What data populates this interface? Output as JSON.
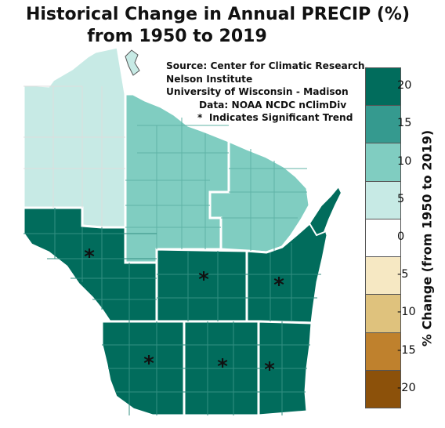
{
  "title_line1": "Historical Change in Annual PRECIP (%)",
  "title_line2": "from 1950 to 2019",
  "source": {
    "line1": "Source:  Center for Climatic Research,",
    "line2": "Nelson Institute",
    "line3": "University of Wisconsin - Madison",
    "line4": "Data: NOAA NCDC nClimDiv",
    "line5": "Indicates Significant Trend",
    "marker": "*"
  },
  "legend": {
    "title": "% Change (from 1950 to 2019)",
    "ticks": [
      "20",
      "15",
      "10",
      "5",
      "0",
      "-5",
      "-10",
      "-15",
      "-20"
    ],
    "colors": [
      "#016c5c",
      "#359a8f",
      "#80cdc1",
      "#c7eae5",
      "#ffffff",
      "#f6e8c3",
      "#dfc27d",
      "#bf812d",
      "#8c510a"
    ]
  },
  "map_colors": {
    "northwest": "#c7eae5",
    "north_central": "#80cdc1",
    "northeast": "#80cdc1",
    "southern_divisions": "#016c5c"
  },
  "significant_marker": "*"
}
